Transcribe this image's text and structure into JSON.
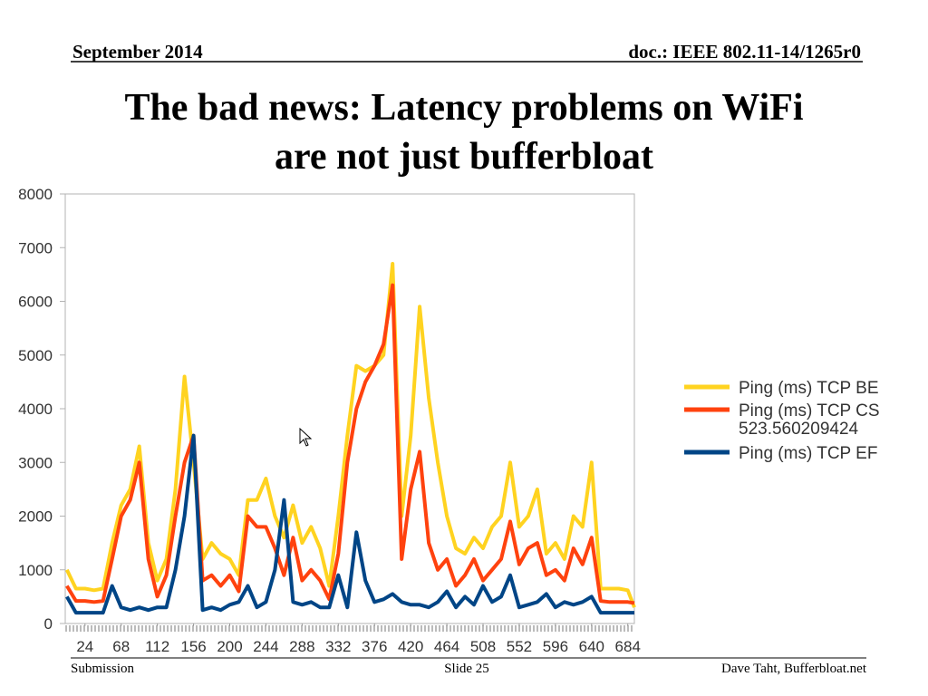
{
  "header": {
    "date": "September 2014",
    "doc": "doc.: IEEE 802.11-14/1265r0"
  },
  "title_lines": [
    "The bad news: Latency problems on WiFi",
    "are not just bufferbloat"
  ],
  "footer": {
    "left": "Submission",
    "center": "Slide 25",
    "right": "Dave Taht, Bufferbloat.net"
  },
  "chart_data": {
    "type": "line",
    "x": [
      2,
      13,
      24,
      35,
      46,
      57,
      68,
      79,
      90,
      101,
      112,
      123,
      134,
      145,
      156,
      167,
      178,
      189,
      200,
      211,
      222,
      233,
      244,
      255,
      266,
      277,
      288,
      299,
      310,
      321,
      332,
      343,
      354,
      365,
      376,
      387,
      398,
      409,
      420,
      431,
      442,
      453,
      464,
      475,
      486,
      497,
      508,
      519,
      530,
      541,
      552,
      563,
      574,
      585,
      596,
      607,
      618,
      629,
      640,
      651,
      662,
      673,
      684,
      692
    ],
    "series": [
      {
        "name": "Ping (ms) TCP BE",
        "color": "#ffd320",
        "values": [
          1000,
          650,
          650,
          620,
          650,
          1500,
          2200,
          2500,
          3300,
          1500,
          800,
          1200,
          2500,
          4600,
          3000,
          1200,
          1500,
          1300,
          1200,
          900,
          2300,
          2300,
          2700,
          2000,
          1600,
          2200,
          1500,
          1800,
          1400,
          700,
          2000,
          3500,
          4800,
          4700,
          4800,
          5000,
          6700,
          2000,
          3500,
          5900,
          4200,
          3000,
          2000,
          1400,
          1300,
          1600,
          1400,
          1800,
          2000,
          3000,
          1800,
          2000,
          2500,
          1300,
          1500,
          1200,
          2000,
          1800,
          3000,
          650,
          650,
          650,
          620,
          300
        ]
      },
      {
        "name": "Ping (ms) TCP CS",
        "color": "#ff420e",
        "values": [
          700,
          420,
          420,
          400,
          420,
          1200,
          2000,
          2300,
          3000,
          1200,
          500,
          900,
          2000,
          3000,
          3500,
          800,
          900,
          700,
          900,
          600,
          2000,
          1800,
          1800,
          1400,
          900,
          1600,
          800,
          1000,
          800,
          450,
          1300,
          3000,
          4000,
          4500,
          4800,
          5200,
          6300,
          1200,
          2500,
          3200,
          1500,
          1000,
          1200,
          700,
          900,
          1200,
          800,
          1000,
          1200,
          1900,
          1100,
          1400,
          1500,
          900,
          1000,
          800,
          1400,
          1100,
          1600,
          420,
          400,
          400,
          400,
          380
        ]
      },
      {
        "name": "Ping (ms) TCP EF",
        "color": "#004586",
        "values": [
          500,
          200,
          200,
          200,
          200,
          700,
          300,
          250,
          300,
          250,
          300,
          300,
          1000,
          2000,
          3500,
          250,
          300,
          250,
          350,
          400,
          700,
          300,
          400,
          1000,
          2300,
          400,
          350,
          400,
          300,
          300,
          900,
          300,
          1700,
          800,
          400,
          450,
          550,
          400,
          350,
          350,
          300,
          400,
          600,
          300,
          500,
          350,
          700,
          400,
          500,
          900,
          300,
          350,
          400,
          550,
          300,
          400,
          350,
          400,
          500,
          200,
          200,
          200,
          200,
          200
        ]
      }
    ],
    "legend_note": "523.560209424",
    "xlim": [
      0,
      692
    ],
    "xticks": [
      24,
      68,
      112,
      156,
      200,
      244,
      288,
      332,
      376,
      420,
      464,
      508,
      552,
      596,
      640,
      684
    ],
    "ylim": [
      0,
      8000
    ],
    "yticks": [
      0,
      1000,
      2000,
      3000,
      4000,
      5000,
      6000,
      7000,
      8000
    ],
    "grid": false,
    "legend": "right"
  }
}
